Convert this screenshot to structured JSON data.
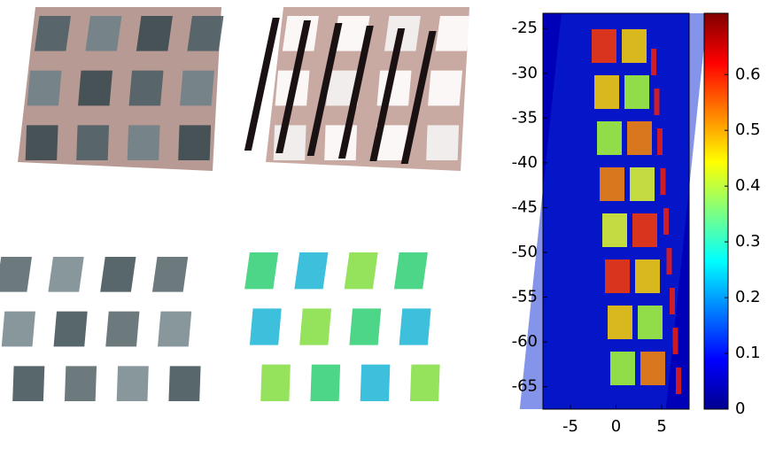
{
  "chart_data": {
    "type": "heatmap",
    "xlim": [
      -8,
      8
    ],
    "xticks": [
      -5,
      0,
      5
    ],
    "ylim": [
      -67.5,
      -23.3
    ],
    "yticks": [
      -25,
      -30,
      -35,
      -40,
      -45,
      -50,
      -55,
      -60,
      -65
    ],
    "clim": [
      0,
      0.71
    ],
    "cticks": [
      0,
      0.1,
      0.2,
      0.3,
      0.4,
      0.5,
      0.6
    ]
  }
}
